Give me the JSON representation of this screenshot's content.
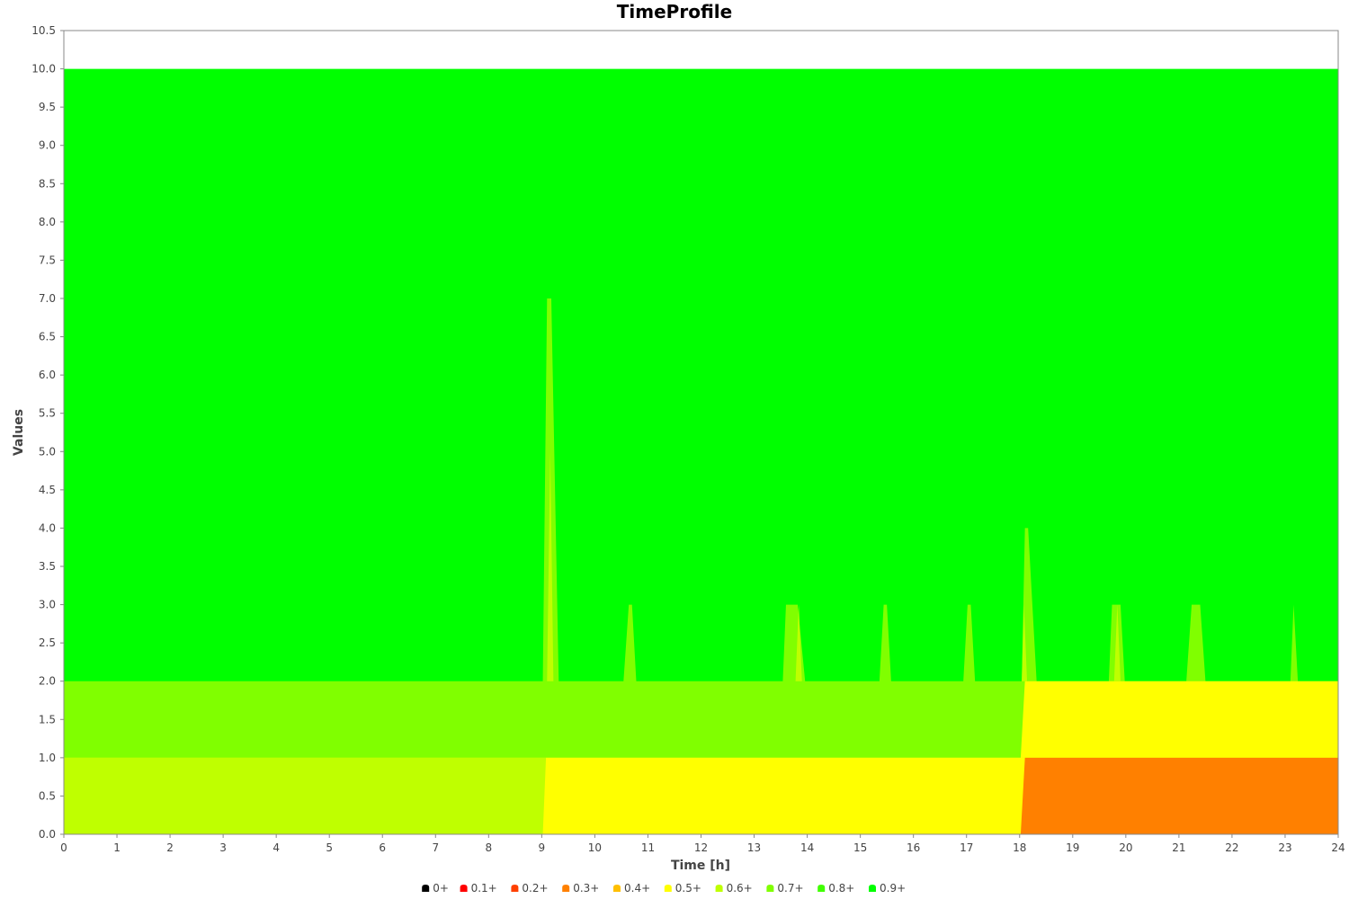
{
  "chart_data": {
    "type": "area",
    "title": "TimeProfile",
    "xlabel": "Time [h]",
    "ylabel": "Values",
    "xlim": [
      0,
      24
    ],
    "ylim": [
      0,
      10.5
    ],
    "x_ticks": [
      "0",
      "1",
      "2",
      "3",
      "4",
      "5",
      "6",
      "7",
      "8",
      "9",
      "10",
      "11",
      "12",
      "13",
      "14",
      "15",
      "16",
      "17",
      "18",
      "19",
      "20",
      "21",
      "22",
      "23",
      "24"
    ],
    "y_ticks": [
      "0.0",
      "0.5",
      "1.0",
      "1.5",
      "2.0",
      "2.5",
      "3.0",
      "3.5",
      "4.0",
      "4.5",
      "5.0",
      "5.5",
      "6.0",
      "6.5",
      "7.0",
      "7.5",
      "8.0",
      "8.5",
      "9.0",
      "9.5",
      "10.0",
      "10.5"
    ],
    "grid": false,
    "legend_position": "bottom",
    "legend": [
      {
        "label": "0+",
        "color": "#000000"
      },
      {
        "label": "0.1+",
        "color": "#ff0000"
      },
      {
        "label": "0.2+",
        "color": "#ff4000"
      },
      {
        "label": "0.3+",
        "color": "#ff8000"
      },
      {
        "label": "0.4+",
        "color": "#ffbf00"
      },
      {
        "label": "0.5+",
        "color": "#ffff00"
      },
      {
        "label": "0.6+",
        "color": "#bfff00"
      },
      {
        "label": "0.7+",
        "color": "#80ff00"
      },
      {
        "label": "0.8+",
        "color": "#40ff00"
      },
      {
        "label": "0.9+",
        "color": "#00ff00"
      }
    ],
    "stacked_bands": [
      {
        "color": "#00ff00",
        "points": [
          [
            0,
            10
          ],
          [
            24,
            10
          ]
        ]
      },
      {
        "color": "#80ff00",
        "points": [
          [
            0,
            2
          ],
          [
            9.02,
            2
          ],
          [
            9.1,
            7
          ],
          [
            9.18,
            7
          ],
          [
            9.32,
            2
          ],
          [
            10.54,
            2
          ],
          [
            10.64,
            3
          ],
          [
            10.7,
            3
          ],
          [
            10.78,
            2
          ],
          [
            13.54,
            2
          ],
          [
            13.6,
            3
          ],
          [
            13.82,
            3
          ],
          [
            13.96,
            2
          ],
          [
            15.36,
            2
          ],
          [
            15.44,
            3
          ],
          [
            15.5,
            3
          ],
          [
            15.58,
            2
          ],
          [
            16.94,
            2
          ],
          [
            17.02,
            3
          ],
          [
            17.08,
            3
          ],
          [
            17.16,
            2
          ],
          [
            18.04,
            2
          ],
          [
            18.1,
            4
          ],
          [
            18.16,
            4
          ],
          [
            18.32,
            2
          ],
          [
            19.68,
            2
          ],
          [
            19.74,
            3
          ],
          [
            19.9,
            3
          ],
          [
            19.98,
            2
          ],
          [
            21.14,
            2
          ],
          [
            21.24,
            3
          ],
          [
            21.4,
            3
          ],
          [
            21.5,
            2
          ],
          [
            23.1,
            2
          ],
          [
            23.16,
            3
          ],
          [
            23.24,
            2
          ],
          [
            24,
            2
          ]
        ]
      },
      {
        "color": "#ffff00",
        "points": [
          [
            0,
            1
          ],
          [
            18.02,
            1
          ],
          [
            18.1,
            2
          ],
          [
            24,
            2
          ]
        ]
      },
      {
        "color": "#bfff00",
        "points": [
          [
            0,
            1
          ],
          [
            24,
            1
          ]
        ]
      },
      {
        "color": "#ffff00",
        "points": [
          [
            0,
            0
          ],
          [
            9.02,
            0
          ],
          [
            9.08,
            1
          ],
          [
            24,
            1
          ]
        ]
      },
      {
        "color": "#ff8000",
        "points": [
          [
            0,
            0
          ],
          [
            18.02,
            0
          ],
          [
            18.1,
            1
          ],
          [
            24,
            1
          ]
        ]
      }
    ],
    "secondary_spikes": [
      {
        "color": "#bfff00",
        "points": [
          [
            9.1,
            2
          ],
          [
            9.16,
            5
          ],
          [
            9.22,
            2
          ]
        ]
      },
      {
        "color": "#bfff00",
        "points": [
          [
            13.78,
            2
          ],
          [
            13.84,
            3
          ],
          [
            13.9,
            2
          ]
        ]
      },
      {
        "color": "#bfff00",
        "points": [
          [
            18.04,
            2
          ],
          [
            18.08,
            3
          ],
          [
            18.14,
            2
          ]
        ]
      },
      {
        "color": "#bfff00",
        "points": [
          [
            19.78,
            2
          ],
          [
            19.84,
            3
          ],
          [
            19.9,
            2
          ]
        ]
      }
    ]
  }
}
